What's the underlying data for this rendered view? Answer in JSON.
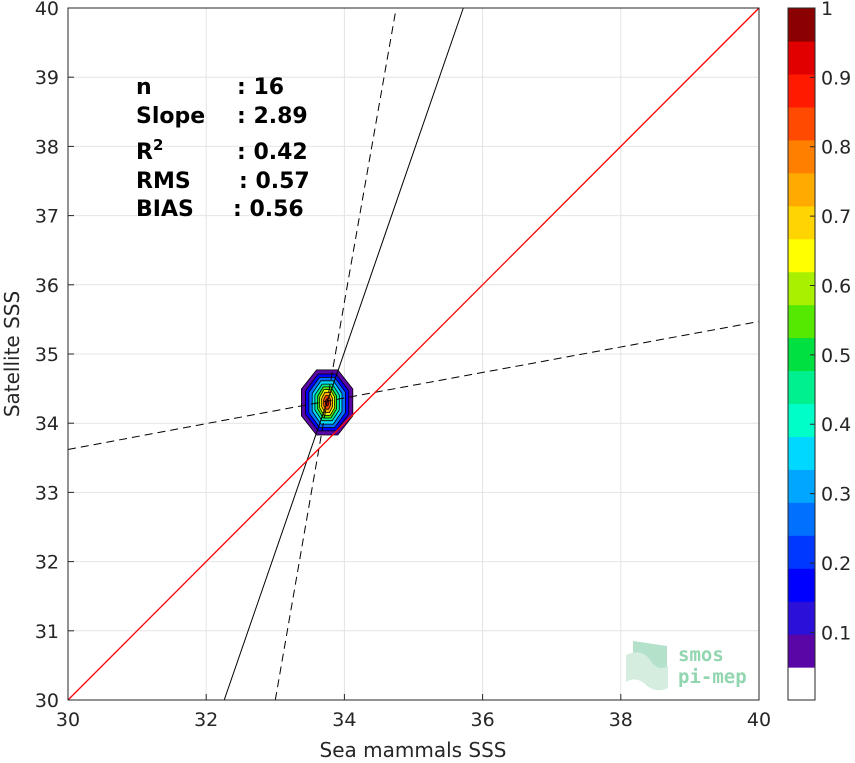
{
  "chart_data": {
    "type": "scatter",
    "xlabel": "Sea mammals SSS",
    "ylabel": "Satellite SSS",
    "xlim": [
      30,
      40
    ],
    "ylim": [
      30,
      40
    ],
    "x_ticks": [
      "30",
      "32",
      "34",
      "36",
      "38",
      "40"
    ],
    "y_ticks": [
      "30",
      "31",
      "32",
      "33",
      "34",
      "35",
      "36",
      "37",
      "38",
      "39",
      "40"
    ],
    "grid": true,
    "stats": [
      {
        "label": "n",
        "value": ": 16"
      },
      {
        "label": "Slope",
        "value": ": 2.89"
      },
      {
        "label": "R",
        "sup": "2",
        "value": ": 0.42"
      },
      {
        "label": "RMS",
        "value": ": 0.57"
      },
      {
        "label": "BIAS",
        "value": ": 0.56"
      }
    ],
    "density_center": {
      "x": 33.75,
      "y": 34.3
    },
    "density_levels": [
      {
        "level": 0.1,
        "rx": 0.38,
        "ry": 0.48
      },
      {
        "level": 0.2,
        "rx": 0.32,
        "ry": 0.42
      },
      {
        "level": 0.3,
        "rx": 0.27,
        "ry": 0.37
      },
      {
        "level": 0.4,
        "rx": 0.22,
        "ry": 0.32
      },
      {
        "level": 0.5,
        "rx": 0.18,
        "ry": 0.27
      },
      {
        "level": 0.6,
        "rx": 0.14,
        "ry": 0.23
      },
      {
        "level": 0.7,
        "rx": 0.11,
        "ry": 0.19
      },
      {
        "level": 0.8,
        "rx": 0.08,
        "ry": 0.15
      },
      {
        "level": 0.9,
        "rx": 0.05,
        "ry": 0.1
      },
      {
        "level": 1.0,
        "rx": 0.025,
        "ry": 0.05
      }
    ],
    "identity_line": {
      "x": [
        30,
        40
      ],
      "y": [
        30,
        40
      ],
      "color": "#ff0000"
    },
    "fit_line": {
      "x": [
        32.26,
        35.72
      ],
      "y": [
        30,
        40
      ],
      "color": "#000000"
    },
    "confidence_bound_steep": {
      "x": [
        33.0,
        34.0,
        34.75
      ],
      "y": [
        30,
        35.75,
        40
      ]
    },
    "confidence_bound_shallow": {
      "x": [
        30,
        33.0,
        40
      ],
      "y": [
        33.62,
        34.18,
        35.47
      ]
    },
    "colorbar": {
      "ticks": [
        "0.1",
        "0.2",
        "0.3",
        "0.4",
        "0.5",
        "0.6",
        "0.7",
        "0.8",
        "0.9",
        "1"
      ],
      "colors": [
        "#ffffff",
        "#5a06a6",
        "#2a10d9",
        "#0000ff",
        "#0038ff",
        "#0070ff",
        "#00a6ff",
        "#00d8ff",
        "#00ffc8",
        "#00f090",
        "#00e040",
        "#55e800",
        "#a8f000",
        "#ffff00",
        "#ffd400",
        "#ffaa00",
        "#ff7f00",
        "#ff4a00",
        "#ff1a00",
        "#e00000",
        "#8b0000"
      ]
    }
  },
  "logo": {
    "line1": "smos",
    "line2": "pi-mep"
  }
}
